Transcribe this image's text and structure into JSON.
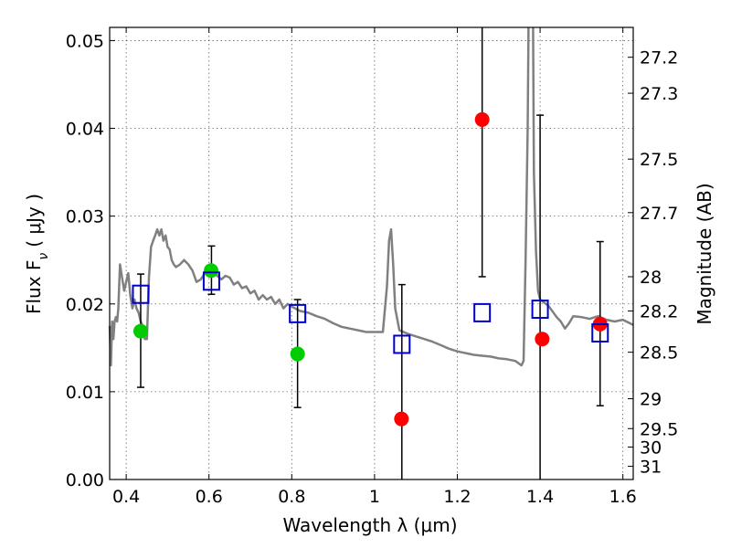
{
  "chart_data": {
    "type": "scatter",
    "xlabel": "Wavelength  λ (μm)",
    "ylabel": "Flux  F",
    "ylabel_sub": "ν",
    "ylabel_unit": "( μJy )",
    "y2label": "Magnitude (AB)",
    "xlim": [
      0.36,
      1.625
    ],
    "ylim": [
      0.0,
      0.0515
    ],
    "grid": true,
    "x_ticks": [
      0.4,
      0.6,
      0.8,
      1.0,
      1.2,
      1.4,
      1.6
    ],
    "x_tick_labels": [
      "0.4",
      "0.6",
      "0.8",
      "1",
      "1.2",
      "1.4",
      "1.6"
    ],
    "y_ticks": [
      0.0,
      0.01,
      0.02,
      0.03,
      0.04,
      0.05
    ],
    "y_tick_labels": [
      "0.00",
      "0.01",
      "0.02",
      "0.03",
      "0.04",
      "0.05"
    ],
    "y2_ticks": [
      {
        "label": "27.2",
        "flux": 0.0481
      },
      {
        "label": "27.3",
        "flux": 0.044
      },
      {
        "label": "27.5",
        "flux": 0.0365
      },
      {
        "label": "27.7",
        "flux": 0.0304
      },
      {
        "label": "28",
        "flux": 0.0231
      },
      {
        "label": "28.2",
        "flux": 0.0192
      },
      {
        "label": "28.5",
        "flux": 0.0145
      },
      {
        "label": "29",
        "flux": 0.0092
      },
      {
        "label": "29.5",
        "flux": 0.0058
      },
      {
        "label": "30",
        "flux": 0.0037
      },
      {
        "label": "31",
        "flux": 0.0015
      }
    ],
    "model_color": "#808080",
    "model_spectrum": [
      [
        0.36,
        0.0175
      ],
      [
        0.363,
        0.013
      ],
      [
        0.366,
        0.018
      ],
      [
        0.369,
        0.016
      ],
      [
        0.372,
        0.018
      ],
      [
        0.375,
        0.0185
      ],
      [
        0.378,
        0.018
      ],
      [
        0.381,
        0.0195
      ],
      [
        0.385,
        0.0245
      ],
      [
        0.39,
        0.023
      ],
      [
        0.395,
        0.0215
      ],
      [
        0.4,
        0.0225
      ],
      [
        0.405,
        0.0235
      ],
      [
        0.41,
        0.021
      ],
      [
        0.415,
        0.0195
      ],
      [
        0.42,
        0.0205
      ],
      [
        0.425,
        0.0195
      ],
      [
        0.43,
        0.019
      ],
      [
        0.435,
        0.018
      ],
      [
        0.44,
        0.0175
      ],
      [
        0.445,
        0.016
      ],
      [
        0.45,
        0.016
      ],
      [
        0.455,
        0.023
      ],
      [
        0.46,
        0.0265
      ],
      [
        0.465,
        0.0272
      ],
      [
        0.47,
        0.0278
      ],
      [
        0.475,
        0.0285
      ],
      [
        0.48,
        0.0278
      ],
      [
        0.485,
        0.0285
      ],
      [
        0.49,
        0.0272
      ],
      [
        0.495,
        0.0278
      ],
      [
        0.5,
        0.0265
      ],
      [
        0.505,
        0.0262
      ],
      [
        0.51,
        0.025
      ],
      [
        0.515,
        0.0245
      ],
      [
        0.52,
        0.0242
      ],
      [
        0.53,
        0.0245
      ],
      [
        0.54,
        0.025
      ],
      [
        0.55,
        0.0245
      ],
      [
        0.56,
        0.0238
      ],
      [
        0.57,
        0.0225
      ],
      [
        0.58,
        0.0228
      ],
      [
        0.59,
        0.0235
      ],
      [
        0.6,
        0.0238
      ],
      [
        0.61,
        0.024
      ],
      [
        0.62,
        0.0232
      ],
      [
        0.63,
        0.0228
      ],
      [
        0.64,
        0.0232
      ],
      [
        0.65,
        0.023
      ],
      [
        0.66,
        0.0222
      ],
      [
        0.67,
        0.0225
      ],
      [
        0.68,
        0.0218
      ],
      [
        0.69,
        0.022
      ],
      [
        0.7,
        0.0212
      ],
      [
        0.71,
        0.0215
      ],
      [
        0.72,
        0.0205
      ],
      [
        0.73,
        0.021
      ],
      [
        0.74,
        0.0205
      ],
      [
        0.75,
        0.0208
      ],
      [
        0.76,
        0.02
      ],
      [
        0.77,
        0.0205
      ],
      [
        0.78,
        0.0195
      ],
      [
        0.79,
        0.02
      ],
      [
        0.8,
        0.0197
      ],
      [
        0.82,
        0.0192
      ],
      [
        0.84,
        0.019
      ],
      [
        0.86,
        0.0186
      ],
      [
        0.88,
        0.0183
      ],
      [
        0.9,
        0.0178
      ],
      [
        0.92,
        0.0174
      ],
      [
        0.94,
        0.0172
      ],
      [
        0.96,
        0.017
      ],
      [
        0.98,
        0.0168
      ],
      [
        1.0,
        0.0168
      ],
      [
        1.02,
        0.0168
      ],
      [
        1.03,
        0.022
      ],
      [
        1.035,
        0.0272
      ],
      [
        1.04,
        0.0285
      ],
      [
        1.045,
        0.0245
      ],
      [
        1.05,
        0.0195
      ],
      [
        1.06,
        0.017
      ],
      [
        1.08,
        0.0166
      ],
      [
        1.1,
        0.0163
      ],
      [
        1.12,
        0.016
      ],
      [
        1.14,
        0.0157
      ],
      [
        1.16,
        0.0153
      ],
      [
        1.18,
        0.0149
      ],
      [
        1.2,
        0.0146
      ],
      [
        1.22,
        0.0144
      ],
      [
        1.24,
        0.0142
      ],
      [
        1.26,
        0.0141
      ],
      [
        1.28,
        0.014
      ],
      [
        1.3,
        0.0138
      ],
      [
        1.32,
        0.0137
      ],
      [
        1.34,
        0.0135
      ],
      [
        1.355,
        0.013
      ],
      [
        1.36,
        0.0135
      ],
      [
        1.365,
        0.025
      ],
      [
        1.37,
        0.04
      ],
      [
        1.372,
        0.0515
      ]
    ],
    "model_spectrum_2": [
      [
        1.383,
        0.0515
      ],
      [
        1.385,
        0.035
      ],
      [
        1.39,
        0.026
      ],
      [
        1.395,
        0.0215
      ],
      [
        1.4,
        0.0205
      ],
      [
        1.42,
        0.0198
      ],
      [
        1.44,
        0.0185
      ],
      [
        1.45,
        0.018
      ],
      [
        1.46,
        0.0172
      ],
      [
        1.47,
        0.0178
      ],
      [
        1.48,
        0.0186
      ],
      [
        1.5,
        0.0185
      ],
      [
        1.52,
        0.0183
      ],
      [
        1.54,
        0.0186
      ],
      [
        1.56,
        0.0182
      ],
      [
        1.58,
        0.018
      ],
      [
        1.6,
        0.0182
      ],
      [
        1.625,
        0.0176
      ]
    ],
    "series": [
      {
        "marker": "circle",
        "color": "#00cc00",
        "points": [
          {
            "x": 0.435,
            "y": 0.0169,
            "err": null
          },
          {
            "x": 0.605,
            "y": 0.0238,
            "err": null
          },
          {
            "x": 0.814,
            "y": 0.0143,
            "err": null
          }
        ]
      },
      {
        "marker": "circle",
        "color": "#ff0000",
        "points": [
          {
            "x": 1.065,
            "y": 0.0069,
            "err": null
          },
          {
            "x": 1.26,
            "y": 0.041,
            "err": null
          },
          {
            "x": 1.405,
            "y": 0.016,
            "err": null
          },
          {
            "x": 1.545,
            "y": 0.0177,
            "err": null
          }
        ]
      },
      {
        "marker": "open-square",
        "color": "#0000cc",
        "points": [
          {
            "x": 0.435,
            "y": 0.0211,
            "err": [
              0.0105,
              0.0234
            ]
          },
          {
            "x": 0.606,
            "y": 0.0226,
            "err": [
              0.0211,
              0.0266
            ]
          },
          {
            "x": 0.814,
            "y": 0.0189,
            "err": [
              0.0082,
              0.0205
            ]
          },
          {
            "x": 1.066,
            "y": 0.0154,
            "err": [
              0.0,
              0.0222
            ]
          },
          {
            "x": 1.26,
            "y": 0.019,
            "err": [
              0.0231,
              0.0515
            ]
          },
          {
            "x": 1.4,
            "y": 0.0194,
            "err": [
              0.0,
              0.0415
            ]
          },
          {
            "x": 1.545,
            "y": 0.0167,
            "err": [
              0.0084,
              0.0271
            ]
          }
        ]
      }
    ]
  }
}
